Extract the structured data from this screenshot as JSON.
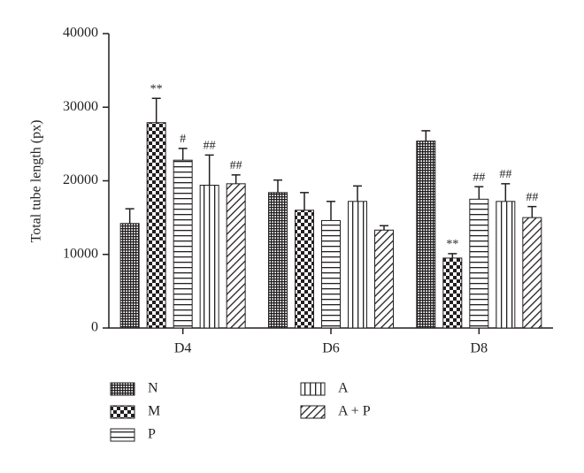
{
  "chart_data": {
    "type": "bar",
    "y_label": "Total tube length (px)",
    "categories": [
      "D4",
      "D6",
      "D8"
    ],
    "ylim": [
      0,
      40000
    ],
    "yticks": [
      0,
      10000,
      20000,
      30000,
      40000
    ],
    "series": [
      {
        "name": "N",
        "color": "#231f20",
        "pattern": "crosshatch",
        "values": [
          14200,
          18400,
          25400
        ],
        "errors": [
          2000,
          1700,
          1400
        ],
        "annotations": [
          null,
          null,
          null
        ]
      },
      {
        "name": "M",
        "color": "#231f20",
        "pattern": "checker",
        "values": [
          27900,
          16000,
          9500
        ],
        "errors": [
          3300,
          2400,
          600
        ],
        "annotations": [
          "**",
          null,
          "**"
        ]
      },
      {
        "name": "P",
        "color": "#231f20",
        "pattern": "hlines",
        "values": [
          22800,
          14600,
          17500
        ],
        "errors": [
          1600,
          2600,
          1700
        ],
        "annotations": [
          "#",
          null,
          "##"
        ]
      },
      {
        "name": "A",
        "color": "#231f20",
        "pattern": "vlines",
        "values": [
          19400,
          17200,
          17200
        ],
        "errors": [
          4100,
          2100,
          2400
        ],
        "annotations": [
          "##",
          null,
          "##"
        ]
      },
      {
        "name": "A + P",
        "color": "#231f20",
        "pattern": "diagonal",
        "values": [
          19600,
          13300,
          15000
        ],
        "errors": [
          1200,
          600,
          1500
        ],
        "annotations": [
          "##",
          null,
          "##"
        ]
      }
    ]
  }
}
